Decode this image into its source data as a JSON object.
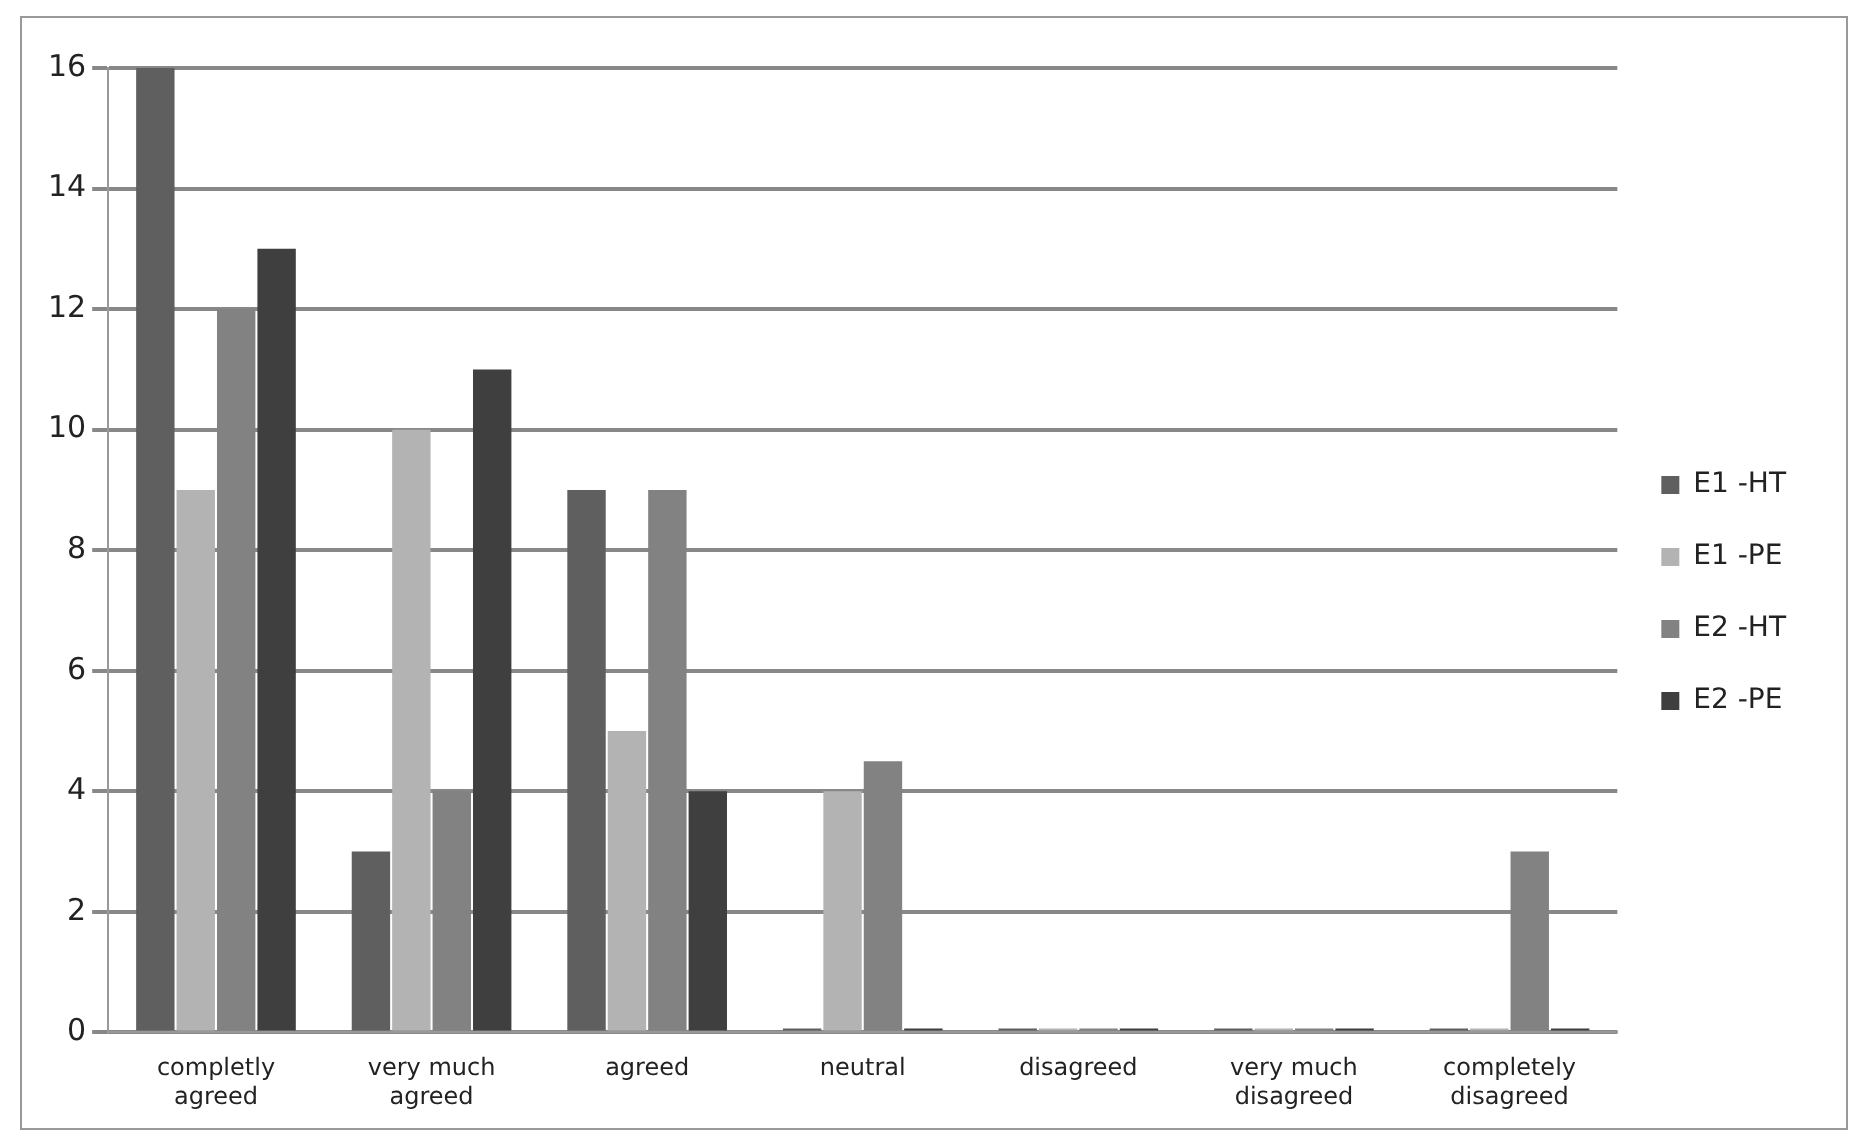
{
  "chart_data": {
    "type": "bar",
    "categories": [
      "completly agreed",
      "very much agreed",
      "agreed",
      "neutral",
      "disagreed",
      "very much disagreed",
      "completely disagreed"
    ],
    "series": [
      {
        "name": "E1 -HT",
        "color": "#5f5f5f",
        "values": [
          16,
          3,
          9,
          0,
          0,
          0,
          0
        ]
      },
      {
        "name": "E1 -PE",
        "color": "#b3b3b3",
        "values": [
          9,
          10,
          5,
          4,
          0,
          0,
          0
        ]
      },
      {
        "name": "E2 -HT",
        "color": "#828282",
        "values": [
          12,
          4,
          9,
          4.5,
          0,
          0,
          3
        ]
      },
      {
        "name": "E2 -PE",
        "color": "#3f3f3f",
        "values": [
          13,
          11,
          4,
          0,
          0,
          0,
          0
        ]
      }
    ],
    "ylim": [
      0,
      16
    ],
    "yticks": [
      0,
      2,
      4,
      6,
      8,
      10,
      12,
      14,
      16
    ],
    "grid": "y",
    "legend": "right"
  }
}
